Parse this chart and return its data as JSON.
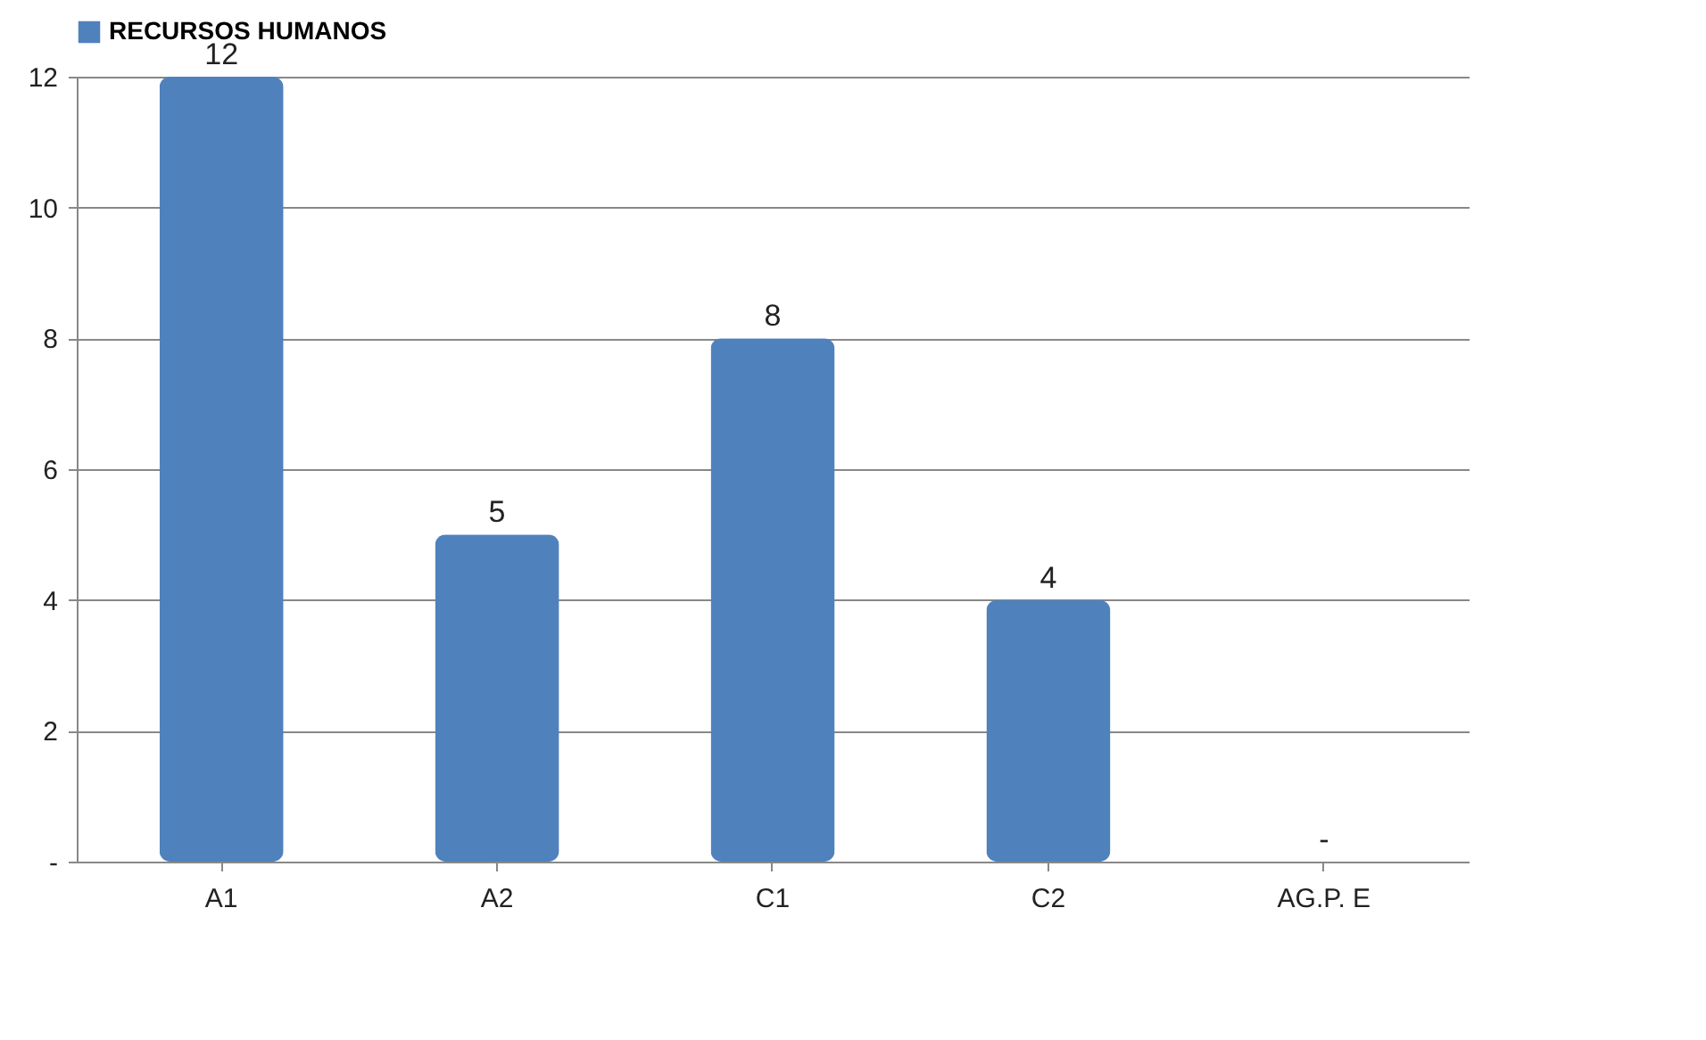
{
  "chart_data": {
    "type": "bar",
    "categories": [
      "A1",
      "A2",
      "C1",
      "C2",
      "AG.P. E"
    ],
    "series": [
      {
        "name": "RECURSOS HUMANOS",
        "color": "#4f81bd",
        "values": [
          12,
          5,
          8,
          4,
          0
        ],
        "value_labels": [
          "12",
          "5",
          "8",
          "4",
          "-"
        ]
      }
    ],
    "ylim": [
      0,
      12
    ],
    "yticks": [
      {
        "value": 0,
        "label": "-"
      },
      2,
      4,
      6,
      8,
      10,
      12
    ],
    "grid": "y",
    "legend": "top"
  }
}
